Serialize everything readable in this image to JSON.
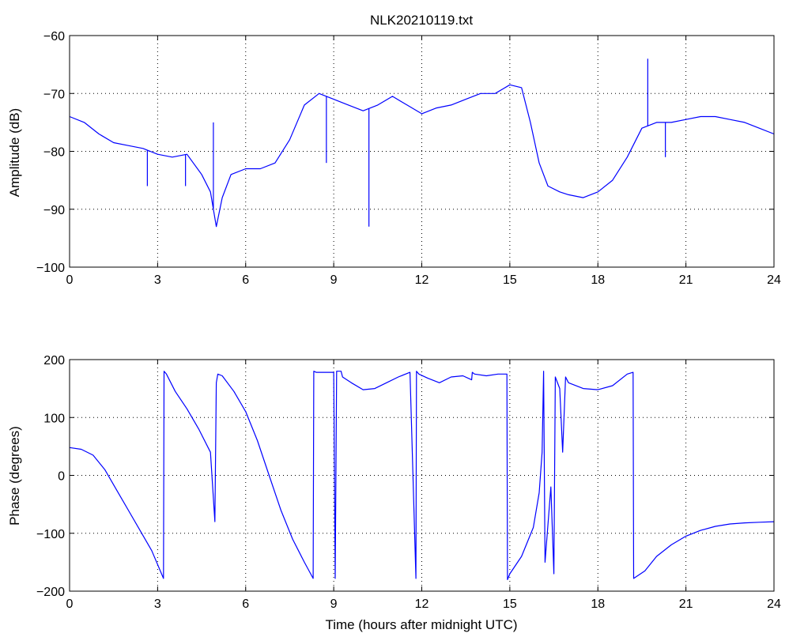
{
  "chart_data": [
    {
      "type": "line",
      "title": "NLK20210119.txt",
      "xlabel": "",
      "ylabel": "Amplitude (dB)",
      "xlim": [
        0,
        24
      ],
      "ylim": [
        -100,
        -60
      ],
      "xticks": [
        0,
        3,
        6,
        9,
        12,
        15,
        18,
        21,
        24
      ],
      "yticks": [
        -100,
        -90,
        -80,
        -70,
        -60
      ],
      "xtick_labels": [
        "0",
        "3",
        "6",
        "9",
        "12",
        "15",
        "18",
        "21",
        "24"
      ],
      "ytick_labels": [
        "−100",
        "−90",
        "−80",
        "−70",
        "−60"
      ],
      "grid": true,
      "line_color": "#0000ff",
      "series": [
        {
          "x": [
            0,
            0.5,
            1,
            1.5,
            2,
            2.5,
            3,
            3.5,
            4,
            4.5,
            4.8,
            5.0,
            5.2,
            5.5,
            6,
            6.5,
            7,
            7.5,
            8,
            8.5,
            9,
            9.5,
            10,
            10.5,
            11,
            11.5,
            12,
            12.5,
            13,
            13.5,
            14,
            14.5,
            15,
            15.4,
            15.7,
            16,
            16.3,
            16.7,
            17,
            17.5,
            18,
            18.5,
            19,
            19.5,
            20,
            20.5,
            21,
            21.5,
            22,
            22.5,
            23,
            23.5,
            24
          ],
          "y": [
            -74,
            -75,
            -77,
            -78.5,
            -79,
            -79.5,
            -80.5,
            -81,
            -80.5,
            -84,
            -87,
            -93,
            -88,
            -84,
            -83,
            -83,
            -82,
            -78,
            -72,
            -70,
            -71,
            -72,
            -73,
            -72,
            -70.5,
            -72,
            -73.5,
            -72.5,
            -72,
            -71,
            -70,
            -70,
            -68.5,
            -69,
            -75,
            -82,
            -86,
            -87,
            -87.5,
            -88,
            -87,
            -85,
            -81,
            -76,
            -75,
            -75,
            -74.5,
            -74,
            -74,
            -74.5,
            -75,
            -76,
            -77
          ]
        }
      ],
      "spikes": [
        {
          "x": 2.65,
          "y": -86
        },
        {
          "x": 3.95,
          "y": -86
        },
        {
          "x": 4.9,
          "y": -75
        },
        {
          "x": 8.75,
          "y": -82
        },
        {
          "x": 10.2,
          "y": -93
        },
        {
          "x": 19.7,
          "y": -64
        },
        {
          "x": 20.3,
          "y": -81
        }
      ]
    },
    {
      "type": "line",
      "title": "",
      "xlabel": "Time (hours after midnight UTC)",
      "ylabel": "Phase (degrees)",
      "xlim": [
        0,
        24
      ],
      "ylim": [
        -200,
        200
      ],
      "xticks": [
        0,
        3,
        6,
        9,
        12,
        15,
        18,
        21,
        24
      ],
      "yticks": [
        -200,
        -100,
        0,
        100,
        200
      ],
      "xtick_labels": [
        "0",
        "3",
        "6",
        "9",
        "12",
        "15",
        "18",
        "21",
        "24"
      ],
      "ytick_labels": [
        "−200",
        "−100",
        "0",
        "100",
        "200"
      ],
      "grid": true,
      "line_color": "#0000ff",
      "series": [
        {
          "x": [
            0,
            0.4,
            0.8,
            1.2,
            1.6,
            2.0,
            2.4,
            2.8,
            3.2,
            3.22,
            3.3,
            3.6,
            4.0,
            4.4,
            4.8,
            4.95,
            5.0,
            5.05,
            5.2,
            5.6,
            6.0,
            6.4,
            6.8,
            7.2,
            7.6,
            8.0,
            8.3,
            8.32,
            8.4,
            8.7,
            9.0,
            9.05,
            9.1,
            9.25,
            9.3,
            9.6,
            10.0,
            10.4,
            10.8,
            11.2,
            11.6,
            11.8,
            11.82,
            11.9,
            12.2,
            12.6,
            13.0,
            13.4,
            13.7,
            13.72,
            13.8,
            14.2,
            14.6,
            14.9,
            14.92,
            15.0,
            15.4,
            15.8,
            16.0,
            16.1,
            16.15,
            16.2,
            16.4,
            16.5,
            16.55,
            16.7,
            16.8,
            16.9,
            17.0,
            17.5,
            18.0,
            18.5,
            19.0,
            19.2,
            19.22,
            19.6,
            20.0,
            20.5,
            21.0,
            21.5,
            22.0,
            22.5,
            23.0,
            23.5,
            24.0
          ],
          "y": [
            48,
            45,
            35,
            10,
            -25,
            -60,
            -95,
            -130,
            -178,
            180,
            175,
            145,
            115,
            80,
            40,
            -80,
            160,
            175,
            172,
            145,
            110,
            60,
            0,
            -60,
            -110,
            -150,
            -178,
            180,
            178,
            178,
            178,
            -178,
            180,
            180,
            170,
            160,
            148,
            150,
            160,
            170,
            178,
            -178,
            180,
            175,
            168,
            160,
            170,
            172,
            165,
            178,
            175,
            172,
            175,
            175,
            -180,
            -170,
            -140,
            -90,
            -30,
            40,
            180,
            -150,
            -20,
            -170,
            170,
            150,
            40,
            170,
            160,
            150,
            148,
            155,
            175,
            178,
            -178,
            -165,
            -140,
            -120,
            -105,
            -95,
            -88,
            -84,
            -82,
            -81,
            -80
          ]
        }
      ]
    }
  ]
}
